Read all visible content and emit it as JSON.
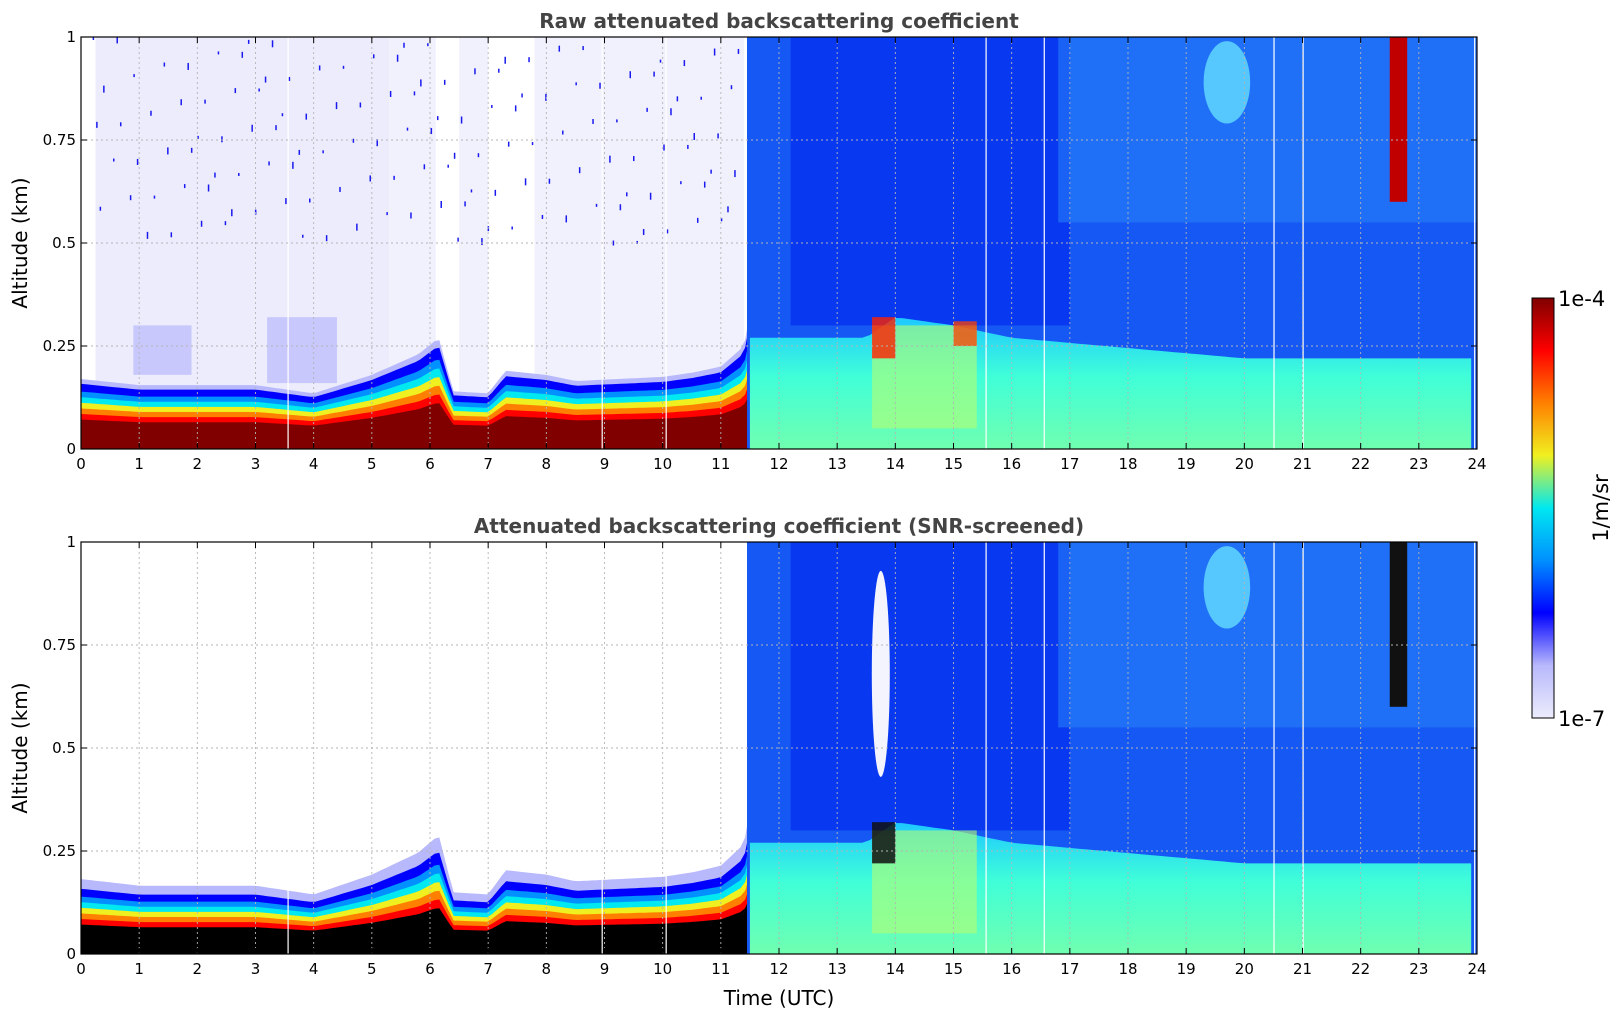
{
  "chart_data": [
    {
      "type": "heatmap",
      "title": "Raw attenuated backscattering coefficient",
      "xlabel": "",
      "ylabel": "Altitude (km)",
      "xlim": [
        0,
        24
      ],
      "ylim": [
        0,
        1
      ],
      "x_ticks": [
        "0",
        "1",
        "2",
        "3",
        "4",
        "5",
        "6",
        "7",
        "8",
        "9",
        "10",
        "11",
        "12",
        "13",
        "14",
        "15",
        "16",
        "17",
        "18",
        "19",
        "20",
        "21",
        "22",
        "23",
        "24"
      ],
      "y_ticks": [
        "0",
        "0.25",
        "0.5",
        "0.75",
        "1"
      ],
      "grid": true,
      "screening": "raw"
    },
    {
      "type": "heatmap",
      "title": "Attenuated backscattering coefficient (SNR-screened)",
      "xlabel": "Time (UTC)",
      "ylabel": "Altitude (km)",
      "xlim": [
        0,
        24
      ],
      "ylim": [
        0,
        1
      ],
      "x_ticks": [
        "0",
        "1",
        "2",
        "3",
        "4",
        "5",
        "6",
        "7",
        "8",
        "9",
        "10",
        "11",
        "12",
        "13",
        "14",
        "15",
        "16",
        "17",
        "18",
        "19",
        "20",
        "21",
        "22",
        "23",
        "24"
      ],
      "y_ticks": [
        "0",
        "0.25",
        "0.5",
        "0.75",
        "1"
      ],
      "grid": true,
      "screening": "snr"
    }
  ],
  "colorbar": {
    "label": "1/m/sr",
    "max_label": "1e-4",
    "min_label": "1e-7",
    "colormap": [
      "#ececfc",
      "#b8b8fc",
      "#0000ff",
      "#0090ff",
      "#00e8f0",
      "#f0f020",
      "#ff8000",
      "#ff0000",
      "#800000"
    ]
  },
  "profile": {
    "layer_top_km": [
      [
        0,
        0.17
      ],
      [
        1,
        0.155
      ],
      [
        3,
        0.155
      ],
      [
        4,
        0.135
      ],
      [
        5,
        0.18
      ],
      [
        5.8,
        0.23
      ],
      [
        6.15,
        0.27
      ],
      [
        6.4,
        0.14
      ],
      [
        7,
        0.135
      ],
      [
        7.3,
        0.19
      ],
      [
        8,
        0.18
      ],
      [
        8.5,
        0.165
      ],
      [
        10,
        0.175
      ],
      [
        10.5,
        0.185
      ],
      [
        11,
        0.2
      ],
      [
        11.4,
        0.25
      ],
      [
        11.5,
        0.33
      ]
    ],
    "surface_layer_top_km": [
      [
        11.5,
        0.27
      ],
      [
        13.5,
        0.27
      ],
      [
        14,
        0.32
      ],
      [
        15,
        0.3
      ],
      [
        16,
        0.27
      ],
      [
        20,
        0.22
      ],
      [
        24,
        0.22
      ]
    ]
  }
}
